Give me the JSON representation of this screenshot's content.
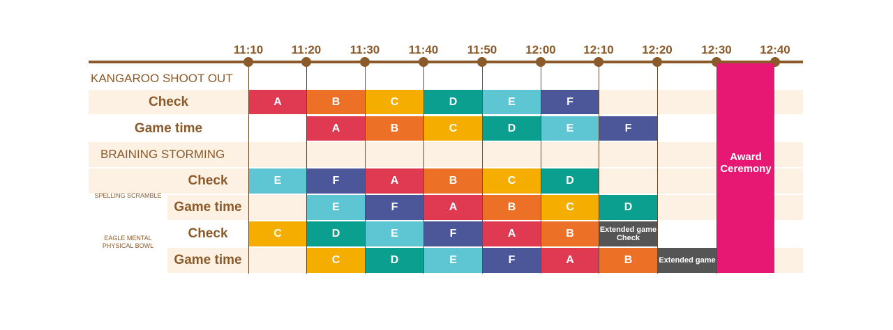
{
  "times": [
    "11:10",
    "11:20",
    "11:30",
    "11:40",
    "11:50",
    "12:00",
    "12:10",
    "12:20",
    "12:30",
    "12:40"
  ],
  "colors": {
    "A": "#e03a52",
    "B": "#ec7025",
    "C": "#f5ae00",
    "D": "#0a9f8e",
    "E": "#5ec5d2",
    "F": "#4b5798",
    "X": "#555555",
    "award": "#e61873",
    "band": "#fdf1e3",
    "timeline": "#8a5a2b"
  },
  "sections": {
    "kangaroo": "KANGAROO SHOOT OUT",
    "braining": "BRAINING STORMING"
  },
  "groups": {
    "spelling": "SPELLING SCRAMBLE",
    "eagle": "EAGLE MENTAL PHYSICAL BOWL"
  },
  "rows": [
    {
      "label": "Check",
      "cells": [
        {
          "slot": 0,
          "text": "A",
          "c": "A"
        },
        {
          "slot": 1,
          "text": "B",
          "c": "B"
        },
        {
          "slot": 2,
          "text": "C",
          "c": "C"
        },
        {
          "slot": 3,
          "text": "D",
          "c": "D"
        },
        {
          "slot": 4,
          "text": "E",
          "c": "E"
        },
        {
          "slot": 5,
          "text": "F",
          "c": "F"
        }
      ]
    },
    {
      "label": "Game time",
      "cells": [
        {
          "slot": 1,
          "text": "A",
          "c": "A"
        },
        {
          "slot": 2,
          "text": "B",
          "c": "B"
        },
        {
          "slot": 3,
          "text": "C",
          "c": "C"
        },
        {
          "slot": 4,
          "text": "D",
          "c": "D"
        },
        {
          "slot": 5,
          "text": "E",
          "c": "E"
        },
        {
          "slot": 6,
          "text": "F",
          "c": "F"
        }
      ]
    },
    {
      "label": "Check",
      "cells": [
        {
          "slot": 0,
          "text": "E",
          "c": "E"
        },
        {
          "slot": 1,
          "text": "F",
          "c": "F"
        },
        {
          "slot": 2,
          "text": "A",
          "c": "A"
        },
        {
          "slot": 3,
          "text": "B",
          "c": "B"
        },
        {
          "slot": 4,
          "text": "C",
          "c": "C"
        },
        {
          "slot": 5,
          "text": "D",
          "c": "D"
        }
      ]
    },
    {
      "label": "Game time",
      "cells": [
        {
          "slot": 1,
          "text": "E",
          "c": "E"
        },
        {
          "slot": 2,
          "text": "F",
          "c": "F"
        },
        {
          "slot": 3,
          "text": "A",
          "c": "A"
        },
        {
          "slot": 4,
          "text": "B",
          "c": "B"
        },
        {
          "slot": 5,
          "text": "C",
          "c": "C"
        },
        {
          "slot": 6,
          "text": "D",
          "c": "D"
        }
      ]
    },
    {
      "label": "Check",
      "cells": [
        {
          "slot": 0,
          "text": "C",
          "c": "C"
        },
        {
          "slot": 1,
          "text": "D",
          "c": "D"
        },
        {
          "slot": 2,
          "text": "E",
          "c": "E"
        },
        {
          "slot": 3,
          "text": "F",
          "c": "F"
        },
        {
          "slot": 4,
          "text": "A",
          "c": "A"
        },
        {
          "slot": 5,
          "text": "B",
          "c": "B"
        },
        {
          "slot": 6,
          "text": "Extended game\nCheck",
          "c": "X",
          "small": true
        }
      ]
    },
    {
      "label": "Game time",
      "cells": [
        {
          "slot": 1,
          "text": "C",
          "c": "C"
        },
        {
          "slot": 2,
          "text": "D",
          "c": "D"
        },
        {
          "slot": 3,
          "text": "E",
          "c": "E"
        },
        {
          "slot": 4,
          "text": "F",
          "c": "F"
        },
        {
          "slot": 5,
          "text": "A",
          "c": "A"
        },
        {
          "slot": 6,
          "text": "B",
          "c": "B"
        },
        {
          "slot": 7,
          "text": "Extended game",
          "c": "X",
          "small": true
        }
      ]
    }
  ],
  "award": "Award\nCeremony"
}
